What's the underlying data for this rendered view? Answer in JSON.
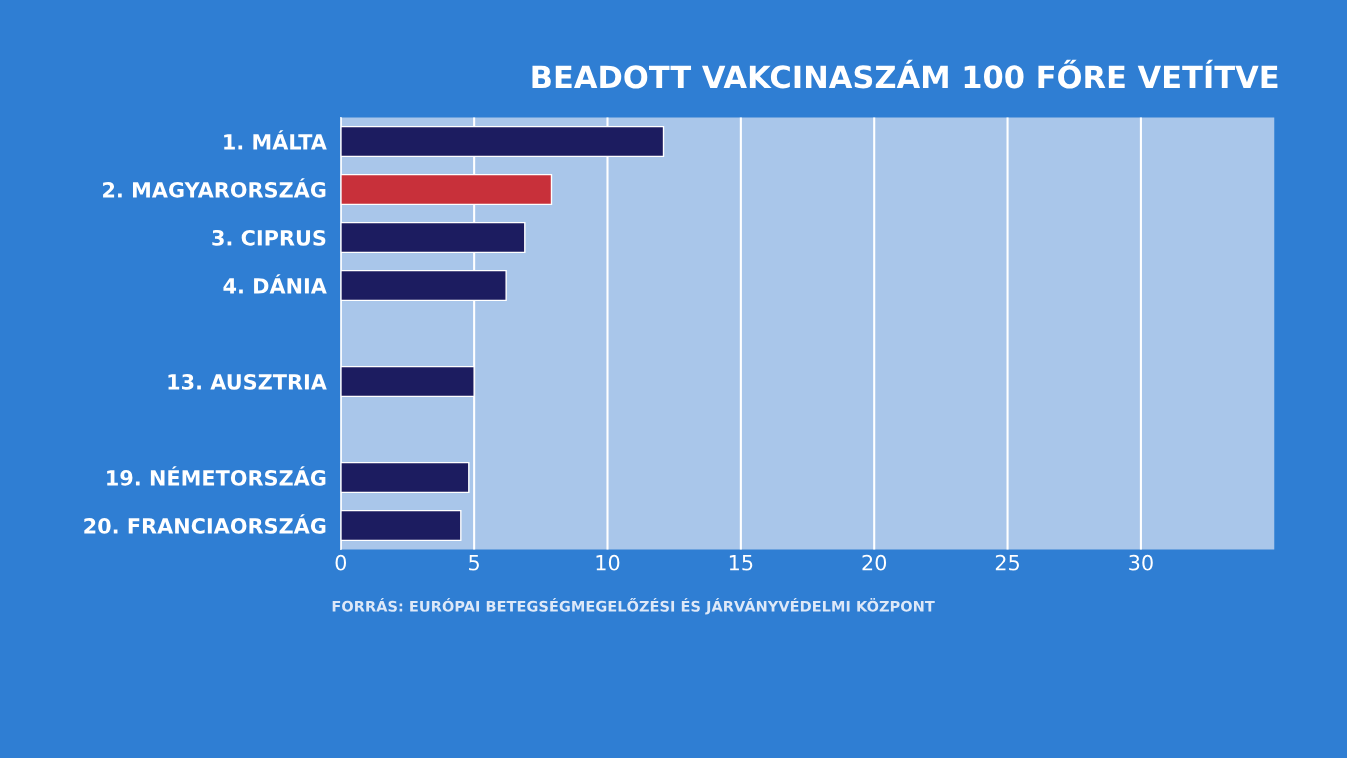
{
  "chart_data": {
    "type": "bar",
    "orientation": "horizontal",
    "title": "BEADOTT VAKCINASZÁM 100 FŐRE VETÍTVE",
    "categories": [
      "1. MÁLTA",
      "2. MAGYARORSZÁG",
      "3. CIPRUS",
      "4. DÁNIA",
      null,
      "13. AUSZTRIA",
      null,
      "19. NÉMETORSZÁG",
      "20. FRANCIAORSZÁG"
    ],
    "values": [
      12.1,
      7.9,
      6.9,
      6.2,
      null,
      5.0,
      null,
      4.8,
      4.5
    ],
    "colors": [
      "#1c1c60",
      "#c8303a",
      "#1c1c60",
      "#1c1c60",
      "#1c1c60",
      "#1c1c60",
      "#1c1c60",
      "#1c1c60",
      "#1c1c60"
    ],
    "xlim": [
      0,
      35
    ],
    "xticks": [
      0,
      5,
      10,
      15,
      20,
      25,
      30
    ],
    "grid": "x",
    "annotations": [
      "FORRÁS: EURÓPAI BETEGSÉGMEGELŐZÉSI ÉS JÁRVÁNYVÉDELMI KÖZPONT"
    ]
  }
}
